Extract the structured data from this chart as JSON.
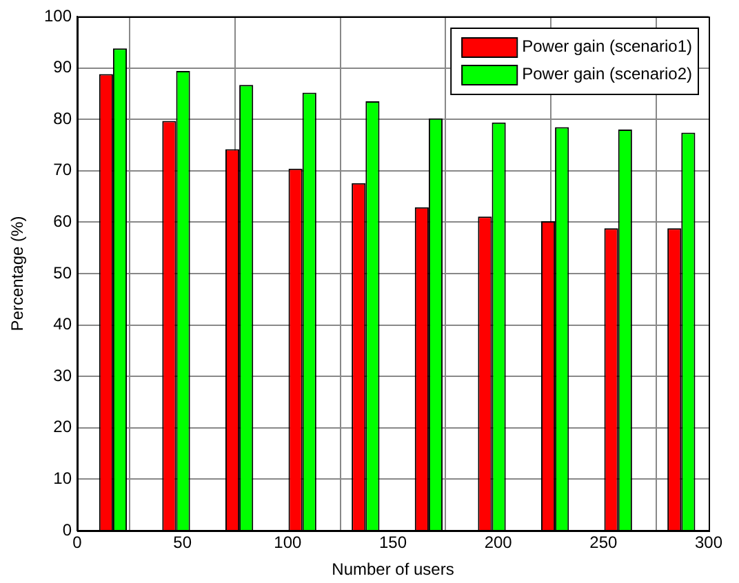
{
  "chart_data": {
    "type": "bar",
    "xlabel": "Number of users",
    "ylabel": "Percentage (%)",
    "x": [
      17,
      47,
      77,
      107,
      137,
      167,
      197,
      227,
      257,
      287
    ],
    "series": [
      {
        "name": "Power gain (scenario1)",
        "color": "#ff0000",
        "values": [
          88.8,
          79.7,
          74.2,
          70.4,
          67.6,
          62.9,
          61.1,
          60.2,
          58.8,
          58.8
        ]
      },
      {
        "name": "Power gain (scenario2)",
        "color": "#00ff00",
        "values": [
          93.8,
          89.4,
          86.7,
          85.2,
          83.5,
          80.2,
          79.4,
          78.5,
          78.0,
          77.4
        ]
      }
    ],
    "xlim": [
      0,
      300
    ],
    "xticks": [
      0,
      50,
      100,
      150,
      200,
      250,
      300
    ],
    "ylim": [
      0,
      100
    ],
    "yticks": [
      0,
      10,
      20,
      30,
      40,
      50,
      60,
      70,
      80,
      90,
      100
    ],
    "grid": true,
    "legend": "top right"
  }
}
